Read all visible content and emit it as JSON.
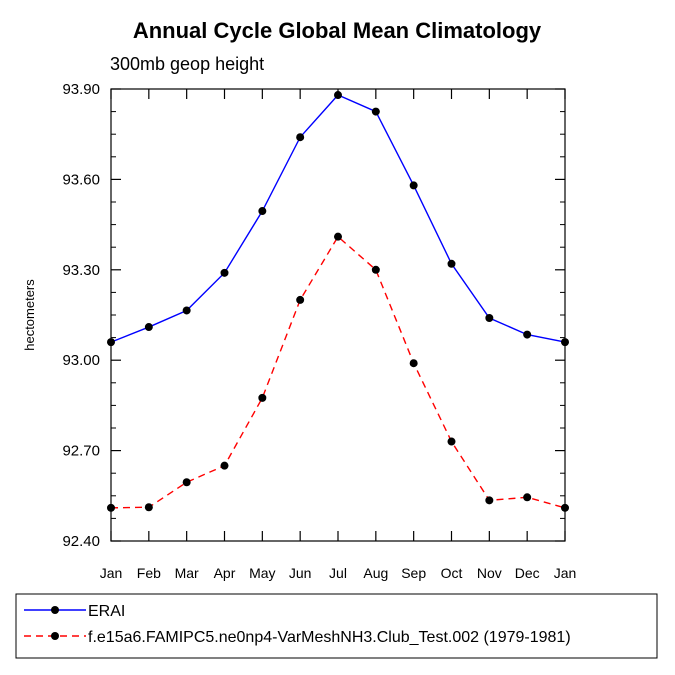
{
  "chart_data": {
    "type": "line",
    "title": "Annual Cycle Global Mean Climatology",
    "subtitle": "300mb geop height",
    "xlabel": "",
    "ylabel": "hectometers",
    "categories": [
      "Jan",
      "Feb",
      "Mar",
      "Apr",
      "May",
      "Jun",
      "Jul",
      "Aug",
      "Sep",
      "Oct",
      "Nov",
      "Dec",
      "Jan"
    ],
    "ylim": [
      92.4,
      93.9
    ],
    "yticks": [
      "93.90",
      "93.60",
      "93.30",
      "93.00",
      "92.70",
      "92.40"
    ],
    "ytick_values": [
      93.9,
      93.6,
      93.3,
      93.0,
      92.7,
      92.4
    ],
    "series": [
      {
        "name": "ERAI",
        "color": "#0000ff",
        "dash": "solid",
        "values": [
          93.06,
          93.11,
          93.165,
          93.29,
          93.495,
          93.74,
          93.88,
          93.825,
          93.58,
          93.32,
          93.14,
          93.085,
          93.06
        ]
      },
      {
        "name": "f.e15a6.FAMIPC5.ne0np4-VarMeshNH3.Club_Test.002 (1979-1981)",
        "color": "#ff0000",
        "dash": "dashed",
        "values": [
          92.51,
          92.512,
          92.595,
          92.65,
          92.875,
          93.2,
          93.41,
          93.3,
          92.99,
          92.73,
          92.535,
          92.545,
          92.51
        ]
      }
    ],
    "legend_position": "bottom"
  }
}
